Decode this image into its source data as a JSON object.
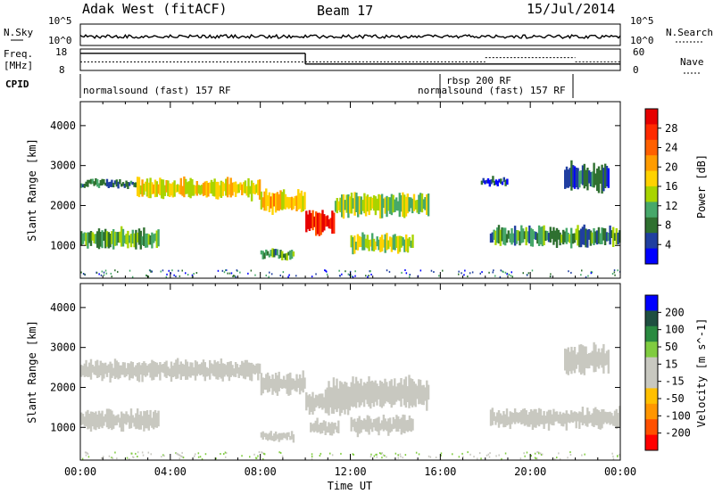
{
  "header": {
    "title": "Adak West (fitACF)",
    "beam": "Beam 17",
    "date": "15/Jul/2014"
  },
  "strip": {
    "nsky_label": "N.Sky",
    "nsky_ticks": [
      "10^5",
      "10^0"
    ],
    "nsearch_label": "N.Search",
    "nsearch_ticks": [
      "10^5",
      "10^0"
    ],
    "freq_label": "Freq.",
    "freq_unit": "[MHz]",
    "freq_ticks": [
      "18",
      "8"
    ],
    "nave_label": "Nave",
    "nave_ticks": [
      "60",
      "0"
    ],
    "cpid_label": "CPID",
    "cpid_segments": [
      "normalsound (fast) 157 RF",
      "rbsp 200 RF",
      "normalsound (fast) 157 RF"
    ]
  },
  "colors": {
    "power_scale": [
      "#0000ff",
      "#203fa0",
      "#2f7030",
      "#47a86a",
      "#a8d400",
      "#ffd200",
      "#ff9c00",
      "#ff6000",
      "#ff2a00",
      "#e60000"
    ],
    "velocity_scale": [
      "#0000ff",
      "#1f4f40",
      "#2a8a40",
      "#80cc40",
      "#c8c8c0",
      "#c8c8c0",
      "#ffc000",
      "#ff9600",
      "#ff5000",
      "#ff0000"
    ]
  },
  "chart_data": [
    {
      "type": "heatmap",
      "panel": "power",
      "xlabel": "Time UT",
      "ylabel": "Slant Range [km]",
      "x_ticks": [
        "00:00",
        "04:00",
        "08:00",
        "12:00",
        "16:00",
        "20:00",
        "00:00"
      ],
      "xlim_hours": [
        0,
        24
      ],
      "ylim_km": [
        180,
        4600
      ],
      "y_ticks": [
        1000,
        2000,
        3000,
        4000
      ],
      "colorbar_label": "Power [dB]",
      "colorbar_ticks": [
        28,
        24,
        20,
        16,
        12,
        8,
        4
      ],
      "colorbar_range": [
        0,
        30
      ],
      "echo_bands": [
        {
          "t_start": 0.0,
          "t_end": 3.5,
          "r_low": 900,
          "r_high": 1450,
          "power": 11
        },
        {
          "t_start": 0.0,
          "t_end": 2.5,
          "r_low": 2450,
          "r_high": 2650,
          "power": 7
        },
        {
          "t_start": 2.5,
          "t_end": 8.0,
          "r_low": 2150,
          "r_high": 2700,
          "power": 16
        },
        {
          "t_start": 8.0,
          "t_end": 10.0,
          "r_low": 1800,
          "r_high": 2400,
          "power": 18
        },
        {
          "t_start": 10.0,
          "t_end": 11.3,
          "r_low": 1250,
          "r_high": 1900,
          "power": 27
        },
        {
          "t_start": 11.3,
          "t_end": 15.5,
          "r_low": 1700,
          "r_high": 2350,
          "power": 13
        },
        {
          "t_start": 8.0,
          "t_end": 9.5,
          "r_low": 650,
          "r_high": 900,
          "power": 9
        },
        {
          "t_start": 12.0,
          "t_end": 14.8,
          "r_low": 800,
          "r_high": 1300,
          "power": 14
        },
        {
          "t_start": 18.2,
          "t_end": 24.0,
          "r_low": 950,
          "r_high": 1500,
          "power": 9
        },
        {
          "t_start": 17.8,
          "t_end": 19.0,
          "r_low": 2500,
          "r_high": 2700,
          "power": 4
        },
        {
          "t_start": 21.5,
          "t_end": 23.5,
          "r_low": 2300,
          "r_high": 3100,
          "power": 6
        }
      ]
    },
    {
      "type": "heatmap",
      "panel": "velocity",
      "xlabel": "Time UT",
      "ylabel": "Slant Range [km]",
      "x_ticks": [
        "00:00",
        "04:00",
        "08:00",
        "12:00",
        "16:00",
        "20:00",
        "00:00"
      ],
      "xlim_hours": [
        0,
        24
      ],
      "ylim_km": [
        180,
        4600
      ],
      "y_ticks": [
        1000,
        2000,
        3000,
        4000
      ],
      "colorbar_label": "Velocity [m s^-1]",
      "colorbar_ticks": [
        "200",
        "100",
        "50",
        "15",
        "-15",
        "-50",
        "-100",
        "-200"
      ],
      "colorbar_range": [
        -250,
        250
      ],
      "echo_bands": [
        {
          "t_start": 0.0,
          "t_end": 3.5,
          "r_low": 900,
          "r_high": 1450,
          "velocity": 0
        },
        {
          "t_start": 0.0,
          "t_end": 8.0,
          "r_low": 2150,
          "r_high": 2700,
          "velocity": 0
        },
        {
          "t_start": 8.0,
          "t_end": 10.0,
          "r_low": 1800,
          "r_high": 2400,
          "velocity": 0
        },
        {
          "t_start": 10.0,
          "t_end": 12.0,
          "r_low": 1250,
          "r_high": 2000,
          "velocity": 0
        },
        {
          "t_start": 11.0,
          "t_end": 15.5,
          "r_low": 1400,
          "r_high": 2300,
          "velocity": -40
        },
        {
          "t_start": 8.0,
          "t_end": 9.5,
          "r_low": 650,
          "r_high": 900,
          "velocity": -45
        },
        {
          "t_start": 10.2,
          "t_end": 11.5,
          "r_low": 800,
          "r_high": 1200,
          "velocity": -40
        },
        {
          "t_start": 12.0,
          "t_end": 14.8,
          "r_low": 800,
          "r_high": 1300,
          "velocity": -45
        },
        {
          "t_start": 18.2,
          "t_end": 24.0,
          "r_low": 950,
          "r_high": 1500,
          "velocity": 0
        },
        {
          "t_start": 21.5,
          "t_end": 23.5,
          "r_low": 2300,
          "r_high": 3100,
          "velocity": 0
        }
      ]
    }
  ],
  "strip_data": {
    "freq_series": [
      {
        "t0": 0,
        "t1": 10.0,
        "mhz": 16
      },
      {
        "t0": 10.0,
        "t1": 24,
        "mhz": 11
      }
    ],
    "nave_series": [
      {
        "t0": 0,
        "t1": 18.0,
        "nave": 24
      },
      {
        "t0": 18.0,
        "t1": 22.0,
        "nave": 36
      },
      {
        "t0": 22.0,
        "t1": 24,
        "nave": 24
      }
    ],
    "cpid_change_hours": [
      16.0,
      22.0
    ]
  }
}
